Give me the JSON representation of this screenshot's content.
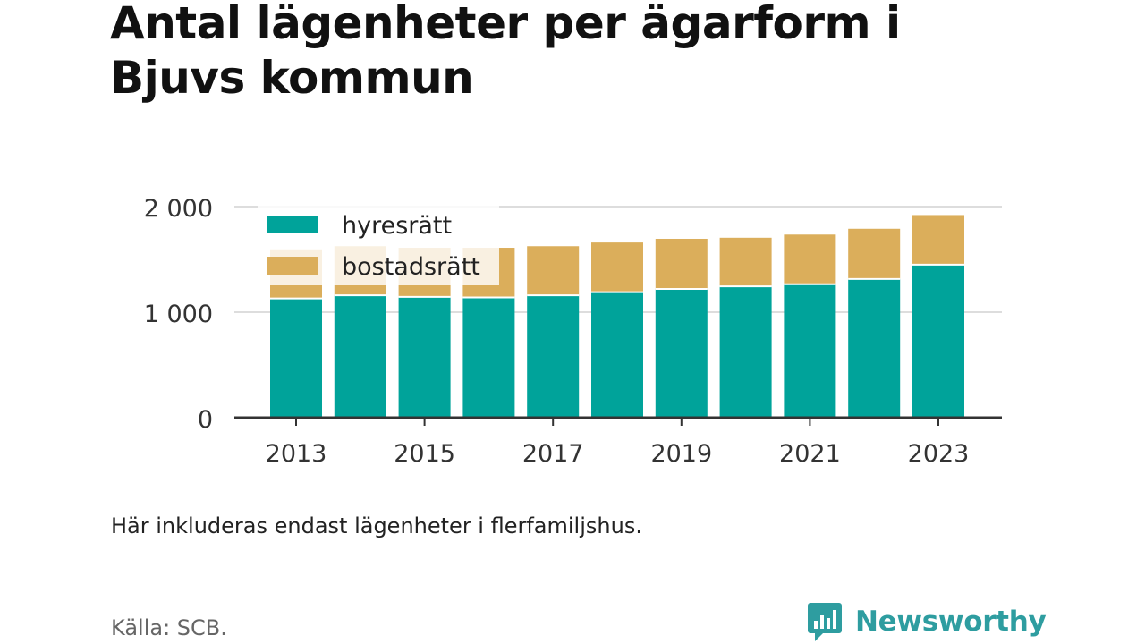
{
  "title": "Antal lägenheter per ägarform i Bjuvs kommun",
  "note": "Här inkluderas endast lägenheter i flerfamiljshus.",
  "source": "Källa: SCB.",
  "brand": {
    "name": "Newsworthy",
    "icon": "newsworthy-logo-icon",
    "color": "#2e9da0"
  },
  "colors": {
    "hyresratt": "#00a39a",
    "bostadsratt": "#dbae5b",
    "grid": "#dddddd",
    "axis": "#333333"
  },
  "chart_data": {
    "type": "bar",
    "stacked": true,
    "categories": [
      "2013",
      "2014",
      "2015",
      "2016",
      "2017",
      "2018",
      "2019",
      "2020",
      "2021",
      "2022",
      "2023"
    ],
    "x_tick_labels": [
      "2013",
      "2015",
      "2017",
      "2019",
      "2021",
      "2023"
    ],
    "series": [
      {
        "name": "hyresrätt",
        "color": "#00a39a",
        "values": [
          1130,
          1160,
          1145,
          1140,
          1160,
          1190,
          1220,
          1245,
          1265,
          1315,
          1450
        ]
      },
      {
        "name": "bostadsrätt",
        "color": "#dbae5b",
        "values": [
          465,
          465,
          465,
          470,
          465,
          470,
          475,
          460,
          470,
          475,
          470
        ]
      }
    ],
    "y_ticks": [
      0,
      1000,
      2000
    ],
    "y_tick_labels": [
      "0",
      "1 000",
      "2 000"
    ],
    "ylim": [
      0,
      2000
    ],
    "grid": true,
    "legend": "top-left"
  }
}
